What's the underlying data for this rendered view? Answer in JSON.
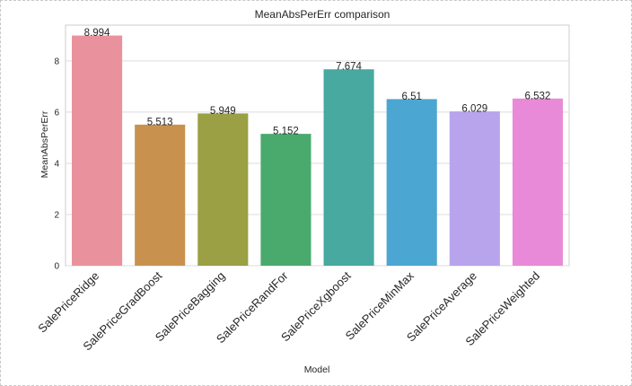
{
  "chart_data": {
    "type": "bar",
    "title": "MeanAbsPerErr comparison",
    "xlabel": "Model",
    "ylabel": "MeanAbsPerErr",
    "ylim": [
      0,
      9.4
    ],
    "yticks": [
      0,
      2,
      4,
      6,
      8
    ],
    "grid": true,
    "categories": [
      "SalePriceRidge",
      "SalePriceGradBoost",
      "SalePriceBagging",
      "SalePriceRandFor",
      "SalePriceXgboost",
      "SalePriceMinMax",
      "SalePriceAverage",
      "SalePriceWeighted"
    ],
    "values": [
      8.994,
      5.513,
      5.949,
      5.152,
      7.674,
      6.51,
      6.029,
      6.532
    ],
    "value_labels": [
      "8.994",
      "5.513",
      "5.949",
      "5.152",
      "7.674",
      "6.51",
      "6.029",
      "6.532"
    ],
    "colors": [
      "#e9929d",
      "#c8924e",
      "#9aa043",
      "#4aaa6e",
      "#47a9a0",
      "#4ba6d1",
      "#b7a4ec",
      "#e98ad8"
    ]
  }
}
